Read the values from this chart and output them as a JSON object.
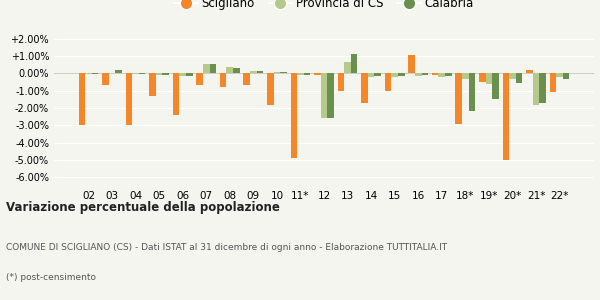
{
  "categories": [
    "02",
    "03",
    "04",
    "05",
    "06",
    "07",
    "08",
    "09",
    "10",
    "11*",
    "12",
    "13",
    "14",
    "15",
    "16",
    "17",
    "18*",
    "19*",
    "20*",
    "21*",
    "22*"
  ],
  "scigliano": [
    -3.0,
    -0.7,
    -3.0,
    -1.3,
    -2.4,
    -0.7,
    -0.8,
    -0.7,
    -1.8,
    -4.9,
    -0.1,
    -1.0,
    -1.7,
    -1.0,
    1.05,
    -0.1,
    -2.9,
    -0.5,
    -5.0,
    0.2,
    -1.1
  ],
  "provincia_cs": [
    -0.05,
    0.0,
    -0.05,
    -0.1,
    -0.15,
    0.55,
    0.35,
    0.15,
    0.05,
    -0.1,
    -2.6,
    0.65,
    -0.2,
    -0.2,
    -0.15,
    -0.2,
    -0.3,
    -0.6,
    -0.3,
    -1.8,
    -0.2
  ],
  "calabria": [
    -0.05,
    0.2,
    -0.05,
    -0.1,
    -0.15,
    0.55,
    0.3,
    0.15,
    0.05,
    -0.1,
    -2.55,
    1.1,
    -0.15,
    -0.15,
    -0.1,
    -0.15,
    -2.2,
    -1.5,
    -0.55,
    -1.7,
    -0.3
  ],
  "color_scigliano": "#f4872a",
  "color_provincia": "#b5c98a",
  "color_calabria": "#6b8f4e",
  "background_color": "#f5f5f0",
  "title_bold": "Variazione percentuale della popolazione",
  "footnote1": "COMUNE DI SCIGLIANO (CS) - Dati ISTAT al 31 dicembre di ogni anno - Elaborazione TUTTITALIA.IT",
  "footnote2": "(*) post-censimento",
  "ylim": [
    -6.5,
    2.5
  ],
  "yticks": [
    -6.0,
    -5.0,
    -4.0,
    -3.0,
    -2.0,
    -1.0,
    0.0,
    1.0,
    2.0
  ],
  "legend_labels": [
    "Scigliano",
    "Provincia di CS",
    "Calabria"
  ]
}
